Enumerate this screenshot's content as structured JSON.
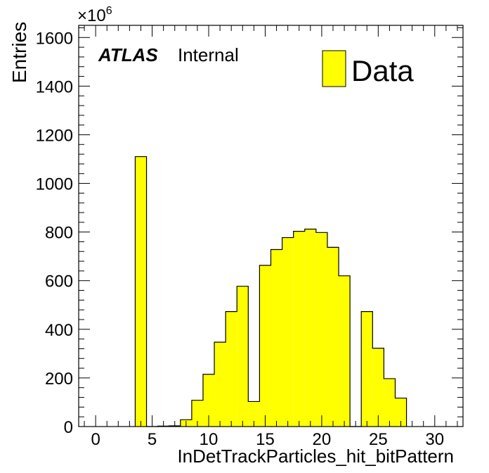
{
  "chart_data": {
    "type": "bar",
    "xlabel": "InDetTrackParticles_hit_bitPattern",
    "ylabel": "Entries",
    "y_multiplier": {
      "base": "×10",
      "exponent": "6"
    },
    "x_range": [
      -1.5,
      32.5
    ],
    "ylim": [
      0,
      1650
    ],
    "x_ticks": [
      0,
      5,
      10,
      15,
      20,
      25,
      30
    ],
    "y_ticks": [
      0,
      200,
      400,
      600,
      800,
      1000,
      1200,
      1400,
      1600
    ],
    "bin_width": 1,
    "bins": [
      {
        "x": 4,
        "value": 1110
      },
      {
        "x": 5,
        "value": 0
      },
      {
        "x": 6,
        "value": 2
      },
      {
        "x": 7,
        "value": 3
      },
      {
        "x": 8,
        "value": 28
      },
      {
        "x": 9,
        "value": 108
      },
      {
        "x": 10,
        "value": 215
      },
      {
        "x": 11,
        "value": 347
      },
      {
        "x": 12,
        "value": 473
      },
      {
        "x": 13,
        "value": 577
      },
      {
        "x": 14,
        "value": 103
      },
      {
        "x": 15,
        "value": 663
      },
      {
        "x": 16,
        "value": 728
      },
      {
        "x": 17,
        "value": 777
      },
      {
        "x": 18,
        "value": 803
      },
      {
        "x": 19,
        "value": 812
      },
      {
        "x": 20,
        "value": 798
      },
      {
        "x": 21,
        "value": 737
      },
      {
        "x": 22,
        "value": 620
      },
      {
        "x": 23,
        "value": 0
      },
      {
        "x": 24,
        "value": 473
      },
      {
        "x": 25,
        "value": 322
      },
      {
        "x": 26,
        "value": 197
      },
      {
        "x": 27,
        "value": 117
      }
    ],
    "fill_color": "#ffff00",
    "line_color": "#000000",
    "legend": {
      "label": "Data",
      "placement": "top-right"
    },
    "label": {
      "experiment": "ATLAS",
      "status": "Internal"
    },
    "grid": false
  }
}
